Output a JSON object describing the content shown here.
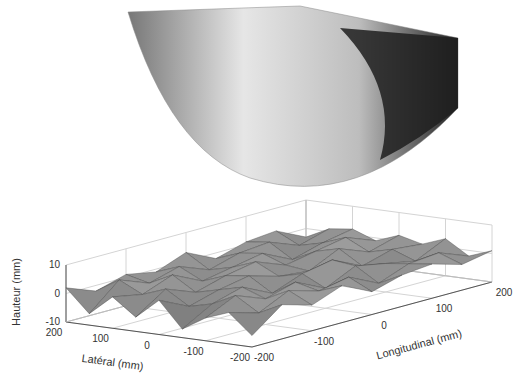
{
  "chart_data": {
    "type": "surface",
    "x_label": "Longitudinal (mm)",
    "y_label": "Latéral (mm)",
    "z_label": "Hauteur (mm)",
    "x": [
      -200,
      -150,
      -100,
      -50,
      0,
      50,
      100,
      150,
      200
    ],
    "y": [
      -200,
      -150,
      -100,
      -50,
      0,
      50,
      100,
      150,
      200
    ],
    "values": [
      [
        -6,
        2,
        -1,
        3,
        -2,
        1,
        2,
        -1,
        1
      ],
      [
        1,
        -2,
        3,
        0,
        2,
        -3,
        1,
        2,
        -2
      ],
      [
        -2,
        3,
        -1,
        2,
        -3,
        2,
        0,
        -2,
        3
      ],
      [
        -7,
        -1,
        2,
        -3,
        1,
        3,
        -2,
        1,
        0
      ],
      [
        2,
        -3,
        0,
        2,
        -1,
        -2,
        3,
        -1,
        2
      ],
      [
        -5,
        2,
        -2,
        1,
        3,
        -1,
        1,
        3,
        -1
      ],
      [
        1,
        -1,
        3,
        -2,
        0,
        2,
        -3,
        0,
        2
      ],
      [
        -6,
        3,
        -1,
        2,
        -2,
        1,
        2,
        -2,
        1
      ],
      [
        2,
        -2,
        1,
        -1,
        3,
        -2,
        1,
        2,
        -3
      ]
    ],
    "xlim": [
      -200,
      200
    ],
    "xticks": [
      -200,
      -100,
      0,
      100,
      200
    ],
    "ylim": [
      -200,
      200
    ],
    "yticks": [
      -200,
      -100,
      0,
      100,
      200
    ],
    "zlim": [
      -10,
      10
    ],
    "zticks": [
      -10,
      0,
      10
    ],
    "grid": true
  }
}
